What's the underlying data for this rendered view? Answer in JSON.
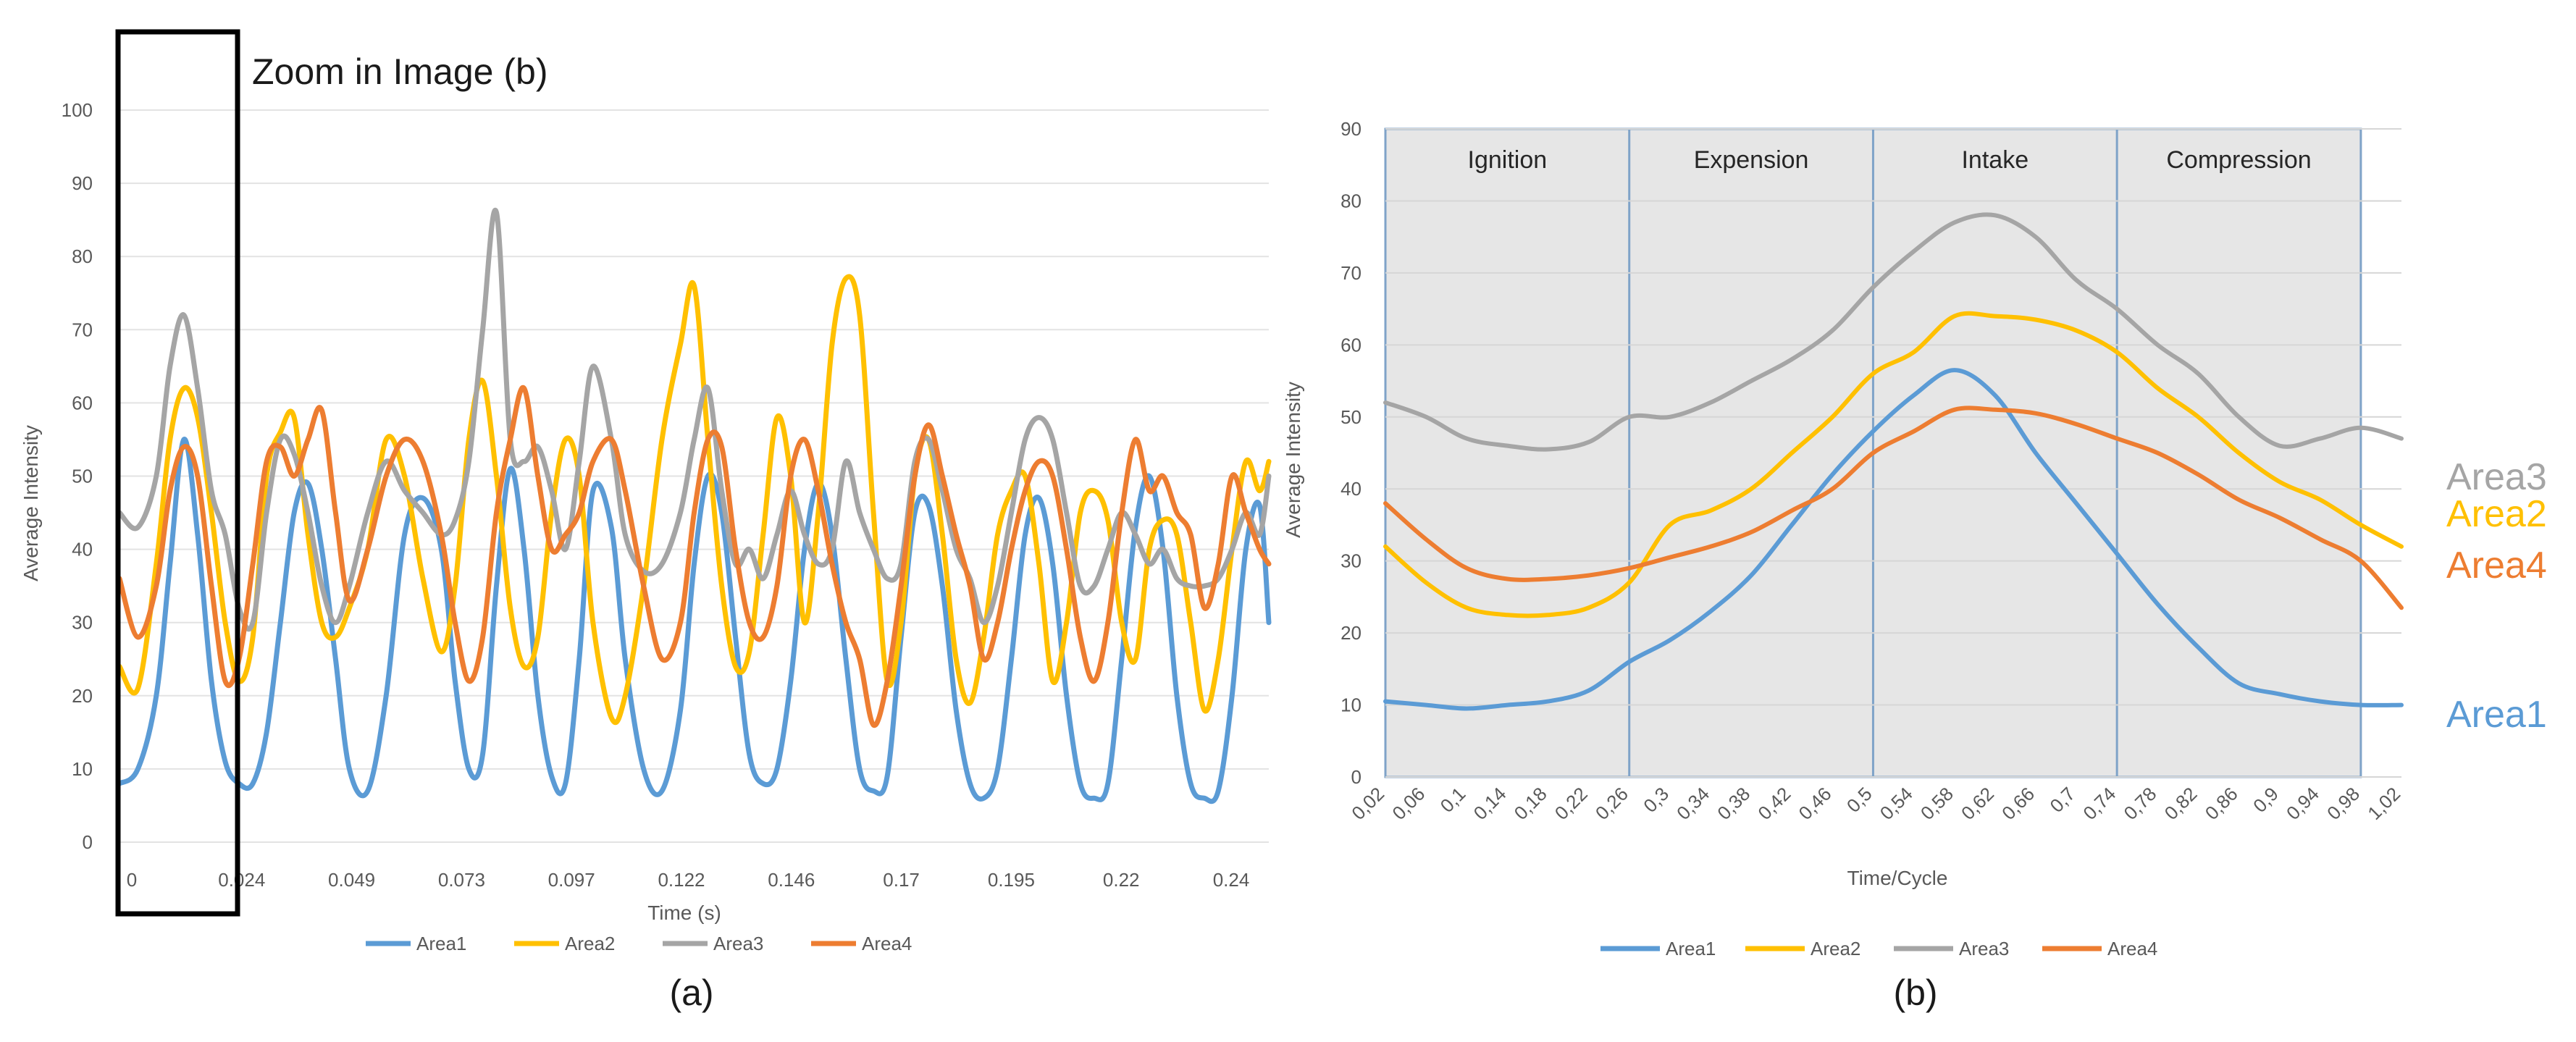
{
  "colors": {
    "area1": "#5B9BD5",
    "area2": "#FFC000",
    "area3": "#A5A5A5",
    "area4": "#ED7D31"
  },
  "labels": {
    "panel_a": "(a)",
    "panel_b": "(b)",
    "zoom_caption": "Zoom in Image (b)"
  },
  "chart_data": [
    {
      "type": "line",
      "id": "chart-a",
      "xlabel": "Time (s)",
      "ylabel": "Average Intensity",
      "xlim": [
        0,
        0.25
      ],
      "ylim": [
        0,
        100
      ],
      "yticks": [
        0,
        10,
        20,
        30,
        40,
        50,
        60,
        70,
        80,
        90,
        100
      ],
      "xtick_labels": [
        "0",
        "0.024",
        "0.049",
        "0.073",
        "0.097",
        "0.122",
        "0.146",
        "0.17",
        "0.195",
        "0.22",
        "0.24"
      ],
      "legend": [
        "Area1",
        "Area2",
        "Area3",
        "Area4"
      ],
      "legend_position": "bottom",
      "series": [
        {
          "name": "Area1",
          "color_key": "area1",
          "x": [
            0,
            0.004,
            0.008,
            0.011,
            0.014,
            0.017,
            0.02,
            0.023,
            0.026,
            0.029,
            0.032,
            0.035,
            0.038,
            0.041,
            0.044,
            0.047,
            0.05,
            0.054,
            0.058,
            0.062,
            0.066,
            0.07,
            0.073,
            0.076,
            0.079,
            0.082,
            0.085,
            0.088,
            0.091,
            0.094,
            0.097,
            0.1,
            0.103,
            0.107,
            0.11,
            0.114,
            0.118,
            0.122,
            0.125,
            0.128,
            0.131,
            0.134,
            0.137,
            0.14,
            0.143,
            0.146,
            0.149,
            0.152,
            0.155,
            0.158,
            0.161,
            0.164,
            0.167,
            0.17,
            0.173,
            0.176,
            0.179,
            0.182,
            0.185,
            0.188,
            0.191,
            0.194,
            0.197,
            0.2,
            0.203,
            0.206,
            0.209,
            0.212,
            0.215,
            0.218,
            0.221,
            0.224,
            0.227,
            0.23,
            0.233,
            0.236,
            0.239,
            0.242,
            0.245,
            0.248,
            0.25
          ],
          "values": [
            8,
            10,
            20,
            38,
            55,
            42,
            22,
            11,
            8,
            8,
            15,
            30,
            45,
            49,
            40,
            25,
            10,
            7,
            20,
            42,
            47,
            40,
            22,
            10,
            12,
            35,
            51,
            40,
            20,
            9,
            8,
            25,
            48,
            43,
            25,
            10,
            7,
            18,
            38,
            50,
            45,
            28,
            12,
            8,
            10,
            22,
            40,
            49,
            42,
            25,
            10,
            7,
            9,
            28,
            45,
            46,
            35,
            18,
            8,
            6,
            10,
            25,
            42,
            47,
            38,
            20,
            8,
            6,
            8,
            25,
            43,
            50,
            40,
            20,
            8,
            6,
            7,
            20,
            40,
            46,
            30
          ]
        },
        {
          "name": "Area2",
          "color_key": "area2",
          "x": [
            0,
            0.004,
            0.008,
            0.011,
            0.014,
            0.017,
            0.02,
            0.023,
            0.026,
            0.029,
            0.032,
            0.035,
            0.038,
            0.041,
            0.044,
            0.047,
            0.05,
            0.054,
            0.058,
            0.062,
            0.066,
            0.07,
            0.073,
            0.076,
            0.079,
            0.082,
            0.085,
            0.088,
            0.091,
            0.094,
            0.097,
            0.1,
            0.103,
            0.107,
            0.11,
            0.114,
            0.118,
            0.122,
            0.125,
            0.128,
            0.131,
            0.134,
            0.137,
            0.14,
            0.143,
            0.146,
            0.149,
            0.152,
            0.155,
            0.158,
            0.161,
            0.164,
            0.167,
            0.17,
            0.173,
            0.176,
            0.179,
            0.182,
            0.185,
            0.188,
            0.191,
            0.194,
            0.197,
            0.2,
            0.203,
            0.206,
            0.209,
            0.212,
            0.215,
            0.218,
            0.221,
            0.224,
            0.227,
            0.23,
            0.233,
            0.236,
            0.239,
            0.242,
            0.245,
            0.248,
            0.25
          ],
          "values": [
            24,
            21,
            38,
            55,
            62,
            58,
            45,
            30,
            22,
            28,
            50,
            56,
            58,
            42,
            30,
            28,
            32,
            40,
            55,
            50,
            36,
            26,
            35,
            55,
            63,
            50,
            32,
            24,
            28,
            45,
            55,
            50,
            30,
            17,
            20,
            35,
            55,
            68,
            76,
            55,
            35,
            24,
            26,
            42,
            58,
            50,
            30,
            45,
            68,
            77,
            72,
            45,
            22,
            30,
            50,
            55,
            42,
            25,
            19,
            28,
            42,
            48,
            50,
            38,
            22,
            30,
            45,
            48,
            44,
            30,
            25,
            40,
            44,
            42,
            30,
            18,
            25,
            40,
            52,
            48,
            52
          ]
        },
        {
          "name": "Area3",
          "color_key": "area3",
          "x": [
            0,
            0.004,
            0.008,
            0.011,
            0.014,
            0.017,
            0.02,
            0.023,
            0.026,
            0.029,
            0.032,
            0.035,
            0.038,
            0.041,
            0.044,
            0.047,
            0.05,
            0.054,
            0.058,
            0.062,
            0.066,
            0.07,
            0.073,
            0.076,
            0.079,
            0.082,
            0.085,
            0.088,
            0.091,
            0.094,
            0.097,
            0.1,
            0.103,
            0.107,
            0.11,
            0.114,
            0.118,
            0.122,
            0.125,
            0.128,
            0.131,
            0.134,
            0.137,
            0.14,
            0.143,
            0.146,
            0.149,
            0.152,
            0.155,
            0.158,
            0.161,
            0.164,
            0.167,
            0.17,
            0.173,
            0.176,
            0.179,
            0.182,
            0.185,
            0.188,
            0.191,
            0.194,
            0.197,
            0.2,
            0.203,
            0.206,
            0.209,
            0.212,
            0.215,
            0.218,
            0.221,
            0.224,
            0.227,
            0.23,
            0.233,
            0.236,
            0.239,
            0.242,
            0.245,
            0.248,
            0.25
          ],
          "values": [
            45,
            43,
            50,
            65,
            72,
            62,
            48,
            42,
            32,
            30,
            45,
            55,
            53,
            45,
            35,
            30,
            35,
            45,
            52,
            48,
            45,
            42,
            44,
            52,
            70,
            86,
            55,
            52,
            54,
            48,
            40,
            52,
            65,
            55,
            42,
            37,
            38,
            45,
            55,
            62,
            48,
            38,
            40,
            36,
            42,
            48,
            42,
            38,
            40,
            52,
            45,
            40,
            36,
            38,
            52,
            55,
            48,
            40,
            36,
            30,
            35,
            45,
            55,
            58,
            55,
            45,
            35,
            35,
            40,
            45,
            42,
            38,
            40,
            36,
            35,
            35,
            36,
            40,
            45,
            42,
            50
          ]
        },
        {
          "name": "Area4",
          "color_key": "area4",
          "x": [
            0,
            0.004,
            0.008,
            0.011,
            0.014,
            0.017,
            0.02,
            0.023,
            0.026,
            0.029,
            0.032,
            0.035,
            0.038,
            0.041,
            0.044,
            0.047,
            0.05,
            0.054,
            0.058,
            0.062,
            0.066,
            0.07,
            0.073,
            0.076,
            0.079,
            0.082,
            0.085,
            0.088,
            0.091,
            0.094,
            0.097,
            0.1,
            0.103,
            0.107,
            0.11,
            0.114,
            0.118,
            0.122,
            0.125,
            0.128,
            0.131,
            0.134,
            0.137,
            0.14,
            0.143,
            0.146,
            0.149,
            0.152,
            0.155,
            0.158,
            0.161,
            0.164,
            0.167,
            0.17,
            0.173,
            0.176,
            0.179,
            0.182,
            0.185,
            0.188,
            0.191,
            0.194,
            0.197,
            0.2,
            0.203,
            0.206,
            0.209,
            0.212,
            0.215,
            0.218,
            0.221,
            0.224,
            0.227,
            0.23,
            0.233,
            0.236,
            0.239,
            0.242,
            0.245,
            0.248,
            0.25
          ],
          "values": [
            36,
            28,
            35,
            48,
            54,
            50,
            35,
            22,
            25,
            38,
            52,
            54,
            50,
            55,
            59,
            45,
            33,
            40,
            50,
            55,
            52,
            42,
            30,
            22,
            28,
            45,
            55,
            62,
            50,
            40,
            42,
            45,
            52,
            55,
            48,
            35,
            25,
            30,
            45,
            55,
            54,
            40,
            30,
            28,
            35,
            50,
            55,
            48,
            38,
            30,
            25,
            16,
            22,
            35,
            50,
            57,
            50,
            42,
            35,
            25,
            30,
            40,
            48,
            52,
            50,
            40,
            28,
            22,
            30,
            45,
            55,
            48,
            50,
            45,
            42,
            32,
            38,
            50,
            45,
            40,
            38
          ]
        }
      ]
    },
    {
      "type": "line",
      "id": "chart-b",
      "xlabel": "Time/Cycle",
      "ylabel": "Average Intensity",
      "xlim": [
        0.02,
        1.02
      ],
      "ylim": [
        0,
        90
      ],
      "yticks": [
        0,
        10,
        20,
        30,
        40,
        50,
        60,
        70,
        80,
        90
      ],
      "xtick_labels": [
        "0,02",
        "0,06",
        "0,1",
        "0,14",
        "0,18",
        "0,22",
        "0,26",
        "0,3",
        "0,34",
        "0,38",
        "0,42",
        "0,46",
        "0,5",
        "0,54",
        "0,58",
        "0,62",
        "0,66",
        "0,7",
        "0,74",
        "0,78",
        "0,82",
        "0,86",
        "0,9",
        "0,94",
        "0,98",
        "1,02"
      ],
      "phases": [
        "Ignition",
        "Expension",
        "Intake",
        "Compression"
      ],
      "phase_boundaries": [
        0.02,
        0.26,
        0.5,
        0.74,
        0.98
      ],
      "legend": [
        "Area1",
        "Area2",
        "Area3",
        "Area4"
      ],
      "legend_position": "bottom",
      "end_labels": [
        "Area3",
        "Area2",
        "Area4",
        "Area1"
      ],
      "series": [
        {
          "name": "Area1",
          "color_key": "area1",
          "x": [
            0.02,
            0.06,
            0.1,
            0.14,
            0.18,
            0.22,
            0.26,
            0.3,
            0.34,
            0.38,
            0.42,
            0.46,
            0.5,
            0.54,
            0.58,
            0.62,
            0.66,
            0.7,
            0.74,
            0.78,
            0.82,
            0.86,
            0.9,
            0.94,
            0.98,
            1.02
          ],
          "values": [
            10.5,
            10,
            9.5,
            10,
            10.5,
            12,
            16,
            19,
            23,
            28,
            35,
            42,
            48,
            53,
            56.5,
            53,
            45,
            38,
            31,
            24,
            18,
            13,
            11.5,
            10.5,
            10,
            10
          ]
        },
        {
          "name": "Area2",
          "color_key": "area2",
          "x": [
            0.02,
            0.06,
            0.1,
            0.14,
            0.18,
            0.22,
            0.26,
            0.3,
            0.34,
            0.38,
            0.42,
            0.46,
            0.5,
            0.54,
            0.58,
            0.62,
            0.66,
            0.7,
            0.74,
            0.78,
            0.82,
            0.86,
            0.9,
            0.94,
            0.98,
            1.02
          ],
          "values": [
            32,
            27,
            23.5,
            22.5,
            22.5,
            23.5,
            27,
            35,
            37,
            40,
            45,
            50,
            56,
            59,
            64,
            64,
            63.5,
            62,
            59,
            54,
            50,
            45,
            41,
            38.5,
            35,
            32
          ]
        },
        {
          "name": "Area3",
          "color_key": "area3",
          "x": [
            0.02,
            0.06,
            0.1,
            0.14,
            0.18,
            0.22,
            0.26,
            0.3,
            0.34,
            0.38,
            0.42,
            0.46,
            0.5,
            0.54,
            0.58,
            0.62,
            0.66,
            0.7,
            0.74,
            0.78,
            0.82,
            0.86,
            0.9,
            0.94,
            0.98,
            1.02
          ],
          "values": [
            52,
            50,
            47,
            46,
            45.5,
            46.5,
            50,
            50,
            52,
            55,
            58,
            62,
            68,
            73,
            77,
            78,
            75,
            69,
            65,
            60,
            56,
            50,
            46,
            47,
            48.5,
            47
          ]
        },
        {
          "name": "Area4",
          "color_key": "area4",
          "x": [
            0.02,
            0.06,
            0.1,
            0.14,
            0.18,
            0.22,
            0.26,
            0.3,
            0.34,
            0.38,
            0.42,
            0.46,
            0.5,
            0.54,
            0.58,
            0.62,
            0.66,
            0.7,
            0.74,
            0.78,
            0.82,
            0.86,
            0.9,
            0.94,
            0.98,
            1.02
          ],
          "values": [
            38,
            33,
            29,
            27.5,
            27.5,
            28,
            29,
            30.5,
            32,
            34,
            37,
            40,
            45,
            48,
            51,
            51,
            50.5,
            49,
            47,
            45,
            42,
            38.5,
            36,
            33,
            30,
            23.5
          ]
        }
      ]
    }
  ]
}
